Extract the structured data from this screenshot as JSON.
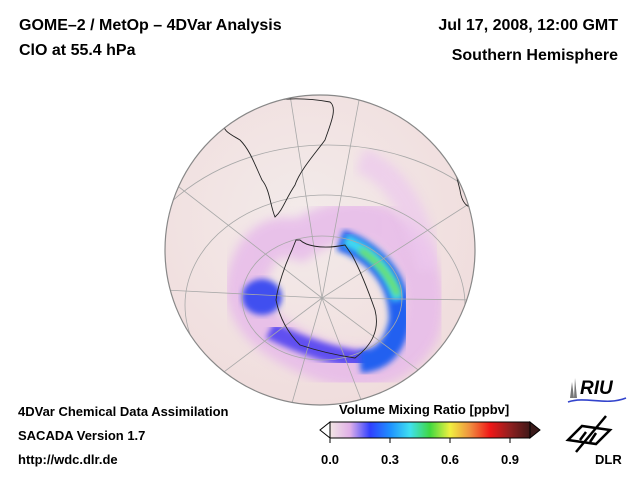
{
  "header": {
    "title_line1": "GOME–2 / MetOp – 4DVar Analysis",
    "title_line2": "ClO at 55.4 hPa",
    "date": "Jul 17, 2008, 12:00 GMT",
    "region": "Southern Hemisphere"
  },
  "footer": {
    "line1": "4DVar Chemical Data Assimilation",
    "line2": "SACADA Version 1.7",
    "line3": "http://wdc.dlr.de"
  },
  "colorbar": {
    "title": "Volume Mixing Ratio [ppbv]",
    "min": 0.0,
    "max": 1.0,
    "ticks": [
      {
        "value": 0.0,
        "label": "0.0"
      },
      {
        "value": 0.3,
        "label": "0.3"
      },
      {
        "value": 0.6,
        "label": "0.6"
      },
      {
        "value": 0.9,
        "label": "0.9"
      }
    ],
    "colors": [
      "#f2e6e4",
      "#e0b0e8",
      "#3040ff",
      "#1e90ff",
      "#40e0f0",
      "#40d840",
      "#f0f040",
      "#f09040",
      "#f01818",
      "#902020",
      "#401818"
    ],
    "extend": "both"
  },
  "map": {
    "projection": "orthographic, south pole view",
    "background_color": "#f2e6e4",
    "features": [
      {
        "name": "vortex-edge-high-clo",
        "peak_value": 0.5,
        "description": "elongated ClO maximum along eastern Antarctic edge"
      },
      {
        "name": "vortex-blob-west",
        "peak_value": 0.15
      }
    ]
  },
  "logos": {
    "riu": "RIU",
    "dlr": "DLR"
  }
}
